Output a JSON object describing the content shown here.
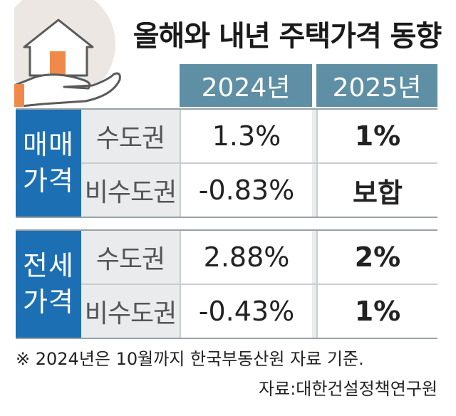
{
  "title": "올해와 내년 주택가격 동향",
  "columns": [
    "2024년",
    "2025년"
  ],
  "groups": [
    {
      "label_line1": "매매",
      "label_line2": "가격",
      "rows": [
        {
          "region": "수도권",
          "y2024": "1.3%",
          "y2025": "1%"
        },
        {
          "region": "비수도권",
          "y2024": "-0.83%",
          "y2025": "보합"
        }
      ]
    },
    {
      "label_line1": "전세",
      "label_line2": "가격",
      "rows": [
        {
          "region": "수도권",
          "y2024": "2.88%",
          "y2025": "2%"
        },
        {
          "region": "비수도권",
          "y2024": "-0.43%",
          "y2025": "1%"
        }
      ]
    }
  ],
  "footnote": "※ 2024년은 10월까지 한국부동산원 자료 기준.",
  "source": "자료:대한건설정책연구원",
  "colors": {
    "header_bg": "#5f8fa4",
    "group_label_bg": "#1c6fb3",
    "row_bg": "#e9ebec",
    "accent_orange": "#f08a4b"
  },
  "icons": [
    "house-in-hand-icon"
  ]
}
